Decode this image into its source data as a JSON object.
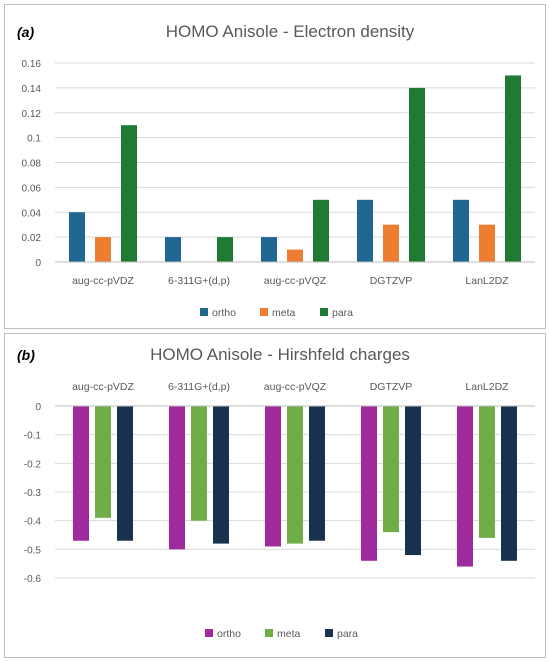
{
  "chart_data": [
    {
      "panel_label": "(a)",
      "type": "bar",
      "title": "HOMO Anisole - Electron density",
      "categories": [
        "aug-cc-pVDZ",
        "6-311G+(d,p)",
        "aug-cc-pVQZ",
        "DGTZVP",
        "LanL2DZ"
      ],
      "series": [
        {
          "name": "ortho",
          "color": "#1f6691",
          "values": [
            0.04,
            0.02,
            0.02,
            0.05,
            0.05
          ]
        },
        {
          "name": "meta",
          "color": "#ed7d31",
          "values": [
            0.02,
            0,
            0.01,
            0.03,
            0.03
          ]
        },
        {
          "name": "para",
          "color": "#1f7a33",
          "values": [
            0.11,
            0.02,
            0.05,
            0.14,
            0.15
          ]
        }
      ],
      "ylim": [
        0,
        0.16
      ],
      "yticks": [
        "0",
        "0.02",
        "0.04",
        "0.06",
        "0.08",
        "0.1",
        "0.12",
        "0.14",
        "0.16"
      ],
      "grid": true,
      "legend_position": "bottom",
      "xaxis_position": "bottom"
    },
    {
      "panel_label": "(b)",
      "type": "bar",
      "title": "HOMO Anisole - Hirshfeld charges",
      "categories": [
        "aug-cc-pVDZ",
        "6-311G+(d,p)",
        "aug-cc-pVQZ",
        "DGTZVP",
        "LanL2DZ"
      ],
      "series": [
        {
          "name": "ortho",
          "color": "#9e2a9e",
          "values": [
            -0.47,
            -0.5,
            -0.49,
            -0.54,
            -0.56
          ]
        },
        {
          "name": "meta",
          "color": "#70ad47",
          "values": [
            -0.39,
            -0.4,
            -0.48,
            -0.44,
            -0.46
          ]
        },
        {
          "name": "para",
          "color": "#17334d",
          "values": [
            -0.47,
            -0.48,
            -0.47,
            -0.52,
            -0.54
          ]
        }
      ],
      "ylim": [
        -0.6,
        0
      ],
      "yticks": [
        "0",
        "-0.1",
        "-0.2",
        "-0.3",
        "-0.4",
        "-0.5",
        "-0.6"
      ],
      "grid": true,
      "legend_position": "bottom",
      "xaxis_position": "top"
    }
  ]
}
